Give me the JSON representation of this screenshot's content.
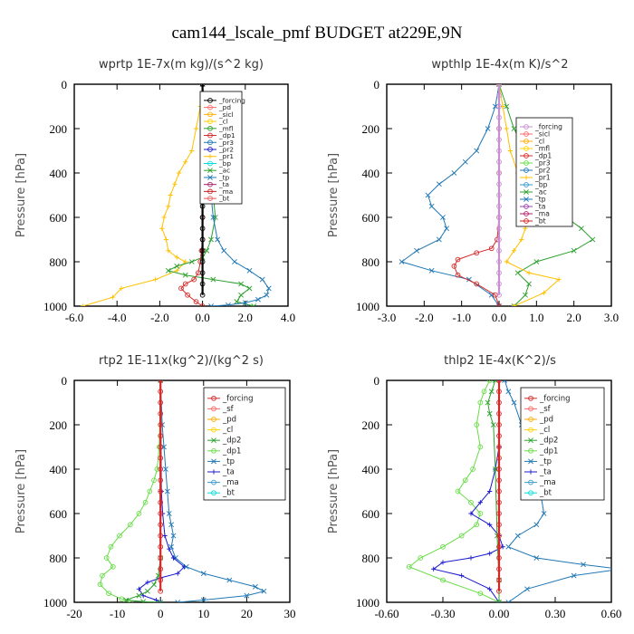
{
  "title": "cam144_lscale_pmf  BUDGET at229E,9N",
  "chart_data": [
    {
      "type": "line",
      "title": "wprtp   1E-7x(m kg)/(s^2 kg)",
      "ylabel": "Pressure [hPa]",
      "xlim": [
        -6,
        4
      ],
      "xticks": [
        "-6.0",
        "-4.0",
        "-2.0",
        "0.0",
        "2.0",
        "4.0"
      ],
      "ylim": [
        0,
        1000
      ],
      "yticks": [
        "0",
        "200",
        "400",
        "600",
        "800",
        "1000"
      ],
      "legend": [
        "_forcing",
        "_pd",
        "_sicl",
        "_cl",
        "_mfl",
        "_dp1",
        "_pr3",
        "_pr2",
        "_pr1",
        "_bp",
        "_ac",
        "_tp",
        "_ta",
        "_ma",
        "_bt"
      ],
      "series": [
        {
          "name": "_forcing",
          "color": "#000000",
          "marker": "o",
          "x": [
            0,
            0,
            0,
            0,
            0,
            0,
            0,
            0,
            0,
            0,
            0,
            0,
            0,
            0,
            0,
            0,
            0,
            0,
            0,
            0
          ],
          "y": [
            0,
            50,
            100,
            150,
            200,
            250,
            300,
            350,
            400,
            450,
            500,
            550,
            600,
            650,
            700,
            750,
            800,
            850,
            900,
            950
          ]
        },
        {
          "name": "_pr1",
          "color": "#ffc000",
          "marker": "+",
          "x": [
            0,
            -0.1,
            -0.3,
            -0.5,
            -0.8,
            -1.1,
            -1.3,
            -1.5,
            -1.6,
            -1.8,
            -1.9,
            -1.7,
            -1.6,
            -1.2,
            -0.8,
            -1.2,
            -2.2,
            -3.8,
            -4.2,
            -5.6
          ],
          "y": [
            0,
            100,
            200,
            300,
            350,
            400,
            450,
            500,
            550,
            600,
            650,
            700,
            750,
            780,
            800,
            840,
            880,
            920,
            960,
            1000
          ]
        },
        {
          "name": "_ac",
          "color": "#2ca02c",
          "marker": "x",
          "x": [
            0,
            0.1,
            0.2,
            0.3,
            0.4,
            0.5,
            0.6,
            0.4,
            0.2,
            0,
            -0.5,
            -1.2,
            -1.6,
            -0.8,
            0.5,
            1.8,
            2.2,
            1.8,
            1.6,
            2.4
          ],
          "y": [
            0,
            100,
            200,
            300,
            400,
            500,
            600,
            700,
            750,
            780,
            800,
            820,
            840,
            860,
            880,
            900,
            920,
            950,
            980,
            1000
          ]
        },
        {
          "name": "_tp",
          "color": "#1f77b4",
          "marker": "x",
          "x": [
            0,
            0.05,
            0.1,
            0.2,
            0.3,
            0.4,
            0.5,
            0.7,
            1.0,
            1.5,
            2.2,
            2.8,
            3.1,
            3.0,
            2.6,
            2.0,
            1.2,
            0.4
          ],
          "y": [
            0,
            100,
            200,
            300,
            400,
            500,
            600,
            700,
            750,
            800,
            840,
            880,
            920,
            950,
            970,
            985,
            995,
            1000
          ]
        },
        {
          "name": "_dp1",
          "color": "#d62728",
          "marker": "o",
          "x": [
            0,
            0,
            0,
            0,
            0,
            -0.05,
            -0.1,
            -0.2,
            -0.4,
            -0.8,
            -1.0,
            -0.7,
            -0.3,
            0
          ],
          "y": [
            0,
            200,
            400,
            600,
            700,
            750,
            800,
            850,
            880,
            900,
            920,
            950,
            980,
            1000
          ]
        }
      ]
    },
    {
      "type": "line",
      "title": "wpthlp   1E-4x(m K)/s^2",
      "ylabel": "Pressure [hPa]",
      "xlim": [
        -3,
        3
      ],
      "xticks": [
        "-3.0",
        "-2.0",
        "-1.0",
        "0.0",
        "1.0",
        "2.0",
        "3.0"
      ],
      "ylim": [
        0,
        1000
      ],
      "yticks": [
        "0",
        "200",
        "400",
        "600",
        "800",
        "1000"
      ],
      "legend": [
        "_forcing",
        "_sicl",
        "_cl",
        "_mfl",
        "_dp1",
        "_pr3",
        "_pr2",
        "_pr1",
        "_bp",
        "_ac",
        "_tp",
        "_ta",
        "_ma",
        "_bt"
      ],
      "series": [
        {
          "name": "_forcing",
          "color": "#c78fcf",
          "marker": "o",
          "x": [
            0,
            0,
            0,
            0,
            0,
            0,
            0,
            0,
            0,
            0,
            0,
            0,
            0,
            0,
            0,
            0,
            0,
            0,
            0,
            0
          ],
          "y": [
            0,
            50,
            100,
            150,
            200,
            250,
            300,
            350,
            400,
            450,
            500,
            550,
            600,
            650,
            700,
            750,
            800,
            850,
            900,
            950
          ]
        },
        {
          "name": "_tp",
          "color": "#1f77b4",
          "marker": "x",
          "x": [
            0,
            -0.1,
            -0.3,
            -0.6,
            -0.9,
            -1.2,
            -1.6,
            -1.9,
            -1.8,
            -1.5,
            -1.4,
            -1.6,
            -2.2,
            -2.6,
            -1.8,
            -0.8,
            -0.2,
            0
          ],
          "y": [
            0,
            100,
            200,
            300,
            350,
            400,
            450,
            500,
            550,
            600,
            650,
            700,
            750,
            800,
            840,
            880,
            950,
            1000
          ]
        },
        {
          "name": "_ac",
          "color": "#2ca02c",
          "marker": "x",
          "x": [
            0,
            0.2,
            0.4,
            0.7,
            1.0,
            1.3,
            1.6,
            1.7,
            1.6,
            1.8,
            2.2,
            2.5,
            2.0,
            1.0,
            0.5,
            0.8,
            0.7,
            0.4
          ],
          "y": [
            0,
            100,
            200,
            300,
            350,
            400,
            450,
            500,
            550,
            600,
            650,
            700,
            750,
            800,
            850,
            900,
            950,
            1000
          ]
        },
        {
          "name": "_pr1",
          "color": "#ffc000",
          "marker": "+",
          "x": [
            0,
            0.1,
            0.2,
            0.3,
            0.5,
            0.6,
            0.8,
            0.7,
            0.6,
            0.4,
            0.2,
            0.8,
            1.6,
            1.2,
            0.4
          ],
          "y": [
            0,
            100,
            200,
            300,
            400,
            500,
            600,
            650,
            700,
            750,
            800,
            850,
            880,
            940,
            1000
          ]
        },
        {
          "name": "_dp1",
          "color": "#d62728",
          "marker": "o",
          "x": [
            0,
            0,
            0,
            0,
            -0.05,
            -0.2,
            -0.6,
            -1.1,
            -1.2,
            -1.1,
            -0.6,
            -0.1,
            0
          ],
          "y": [
            0,
            200,
            400,
            600,
            700,
            740,
            760,
            790,
            820,
            860,
            900,
            950,
            1000
          ]
        }
      ]
    },
    {
      "type": "line",
      "title": "rtp2   1E-11x(kg^2)/(kg^2 s)",
      "ylabel": "Pressure [hPa]",
      "xlim": [
        -20,
        30
      ],
      "xticks": [
        "-20",
        "-10",
        "0",
        "10",
        "20",
        "30"
      ],
      "ylim": [
        0,
        1000
      ],
      "yticks": [
        "0",
        "200",
        "400",
        "600",
        "800",
        "1000"
      ],
      "legend": [
        "_forcing",
        "_sf",
        "_pd",
        "_cl",
        "_dp2",
        "_dp1",
        "_tp",
        "_ta",
        "_ma",
        "_bt"
      ],
      "series": [
        {
          "name": "_forcing",
          "color": "#d62728",
          "marker": "o",
          "x": [
            0,
            0,
            0,
            0,
            0,
            0,
            0,
            0,
            0,
            0,
            0,
            0,
            0,
            0,
            0,
            0,
            0,
            0,
            0,
            0
          ],
          "y": [
            0,
            50,
            100,
            150,
            200,
            250,
            300,
            350,
            400,
            450,
            500,
            550,
            600,
            650,
            700,
            750,
            800,
            850,
            900,
            950
          ]
        },
        {
          "name": "_dp1",
          "color": "#66dd44",
          "marker": "o",
          "x": [
            0,
            -0.3,
            -0.8,
            -1.5,
            -2.5,
            -3.5,
            -5,
            -7,
            -9.5,
            -11.5,
            -12.5,
            -11,
            -13.5,
            -14,
            -12,
            -9,
            -7
          ],
          "y": [
            0,
            300,
            400,
            450,
            500,
            550,
            600,
            650,
            700,
            750,
            800,
            840,
            880,
            920,
            960,
            985,
            1000
          ]
        },
        {
          "name": "_tp",
          "color": "#1f77b4",
          "marker": "x",
          "x": [
            0,
            0.4,
            0.8,
            1.2,
            1.6,
            2.0,
            2.5,
            3.0,
            2.5,
            3.5,
            6,
            10,
            16,
            22,
            24,
            20,
            10,
            4
          ],
          "y": [
            0,
            200,
            300,
            400,
            500,
            600,
            650,
            700,
            750,
            800,
            840,
            870,
            900,
            930,
            950,
            970,
            990,
            1000
          ]
        },
        {
          "name": "_ta",
          "color": "#1a1acc",
          "marker": "+",
          "x": [
            0,
            0.2,
            0.5,
            1.0,
            2.0,
            3.0,
            5.5,
            4.0,
            0,
            -3,
            -5,
            -4,
            -1,
            0
          ],
          "y": [
            0,
            500,
            600,
            700,
            760,
            800,
            840,
            870,
            890,
            910,
            940,
            970,
            990,
            1000
          ]
        },
        {
          "name": "_dp2",
          "color": "#2ca02c",
          "marker": "x",
          "x": [
            0,
            0,
            -0.5,
            -1.5,
            -3,
            -5,
            -8,
            -4,
            0
          ],
          "y": [
            0,
            800,
            880,
            920,
            950,
            970,
            990,
            997,
            1000
          ]
        }
      ]
    },
    {
      "type": "line",
      "title": "thlp2   1E-4x(K^2)/s",
      "ylabel": "Pressure [hPa]",
      "xlim": [
        -0.6,
        0.6
      ],
      "xticks": [
        "-0.60",
        "-0.30",
        "0.00",
        "0.30",
        "0.60"
      ],
      "ylim": [
        0,
        1000
      ],
      "yticks": [
        "0",
        "200",
        "400",
        "600",
        "800",
        "1000"
      ],
      "legend": [
        "_forcing",
        "_sf",
        "_pd",
        "_cl",
        "_dp2",
        "_dp1",
        "_tp",
        "_ta",
        "_ma",
        "_bt"
      ],
      "series": [
        {
          "name": "_forcing",
          "color": "#d62728",
          "marker": "o",
          "x": [
            0,
            0,
            0,
            0,
            0,
            0,
            0,
            0,
            0,
            0,
            0,
            0,
            0,
            0,
            0,
            0,
            0,
            0,
            0,
            0
          ],
          "y": [
            0,
            50,
            100,
            150,
            200,
            250,
            300,
            350,
            400,
            450,
            500,
            550,
            600,
            650,
            700,
            750,
            800,
            850,
            900,
            950
          ]
        },
        {
          "name": "_dp1",
          "color": "#66dd44",
          "marker": "o",
          "x": [
            -0.05,
            -0.08,
            -0.1,
            -0.12,
            -0.1,
            -0.14,
            -0.18,
            -0.22,
            -0.15,
            -0.1,
            -0.12,
            -0.2,
            -0.3,
            -0.42,
            -0.48,
            -0.3,
            -0.1,
            0
          ],
          "y": [
            0,
            50,
            100,
            200,
            300,
            400,
            450,
            500,
            550,
            600,
            650,
            700,
            750,
            800,
            840,
            900,
            960,
            1000
          ]
        },
        {
          "name": "_tp",
          "color": "#1f77b4",
          "marker": "x",
          "x": [
            0.03,
            0.05,
            0.08,
            0.12,
            0.15,
            0.2,
            0.22,
            0.24,
            0.2,
            0.1,
            0.05,
            0.2,
            0.45,
            0.65,
            0.4,
            0.15,
            0.05
          ],
          "y": [
            0,
            50,
            100,
            200,
            300,
            400,
            500,
            600,
            650,
            700,
            750,
            800,
            830,
            850,
            880,
            940,
            1000
          ]
        },
        {
          "name": "_ta",
          "color": "#1a1acc",
          "marker": "+",
          "x": [
            0,
            0,
            -0.02,
            -0.05,
            -0.1,
            -0.15,
            -0.05,
            0,
            0.02,
            -0.05,
            -0.15,
            -0.3,
            -0.35,
            -0.2,
            -0.05,
            0
          ],
          "y": [
            0,
            300,
            400,
            500,
            550,
            600,
            650,
            700,
            750,
            780,
            800,
            820,
            850,
            880,
            940,
            1000
          ]
        },
        {
          "name": "_dp2",
          "color": "#2ca02c",
          "marker": "x",
          "x": [
            -0.02,
            -0.04,
            -0.06,
            -0.05,
            -0.03,
            -0.02,
            -0.01,
            0,
            0
          ],
          "y": [
            0,
            50,
            100,
            150,
            200,
            400,
            700,
            900,
            1000
          ]
        }
      ]
    }
  ]
}
